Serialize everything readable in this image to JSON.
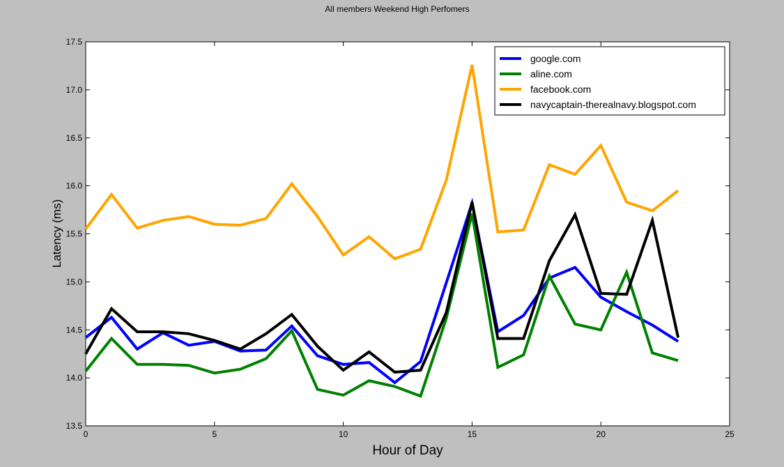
{
  "chart_data": {
    "type": "line",
    "title": "All members Weekend High Perfomers",
    "xlabel": "Hour of Day",
    "ylabel": "Latency (ms)",
    "xlim": [
      0,
      25
    ],
    "ylim": [
      13.5,
      17.5
    ],
    "xticks": [
      0,
      5,
      10,
      15,
      20,
      25
    ],
    "xtick_labels": [
      "0",
      "5",
      "10",
      "15",
      "20",
      "25"
    ],
    "yticks": [
      13.5,
      14.0,
      14.5,
      15.0,
      15.5,
      16.0,
      16.5,
      17.0,
      17.5
    ],
    "ytick_labels": [
      "13.5",
      "14.0",
      "14.5",
      "15.0",
      "15.5",
      "16.0",
      "16.5",
      "17.0",
      "17.5"
    ],
    "grid": false,
    "legend": "top-right",
    "x": [
      0,
      1,
      2,
      3,
      4,
      5,
      6,
      7,
      8,
      9,
      10,
      11,
      12,
      13,
      14,
      15,
      16,
      17,
      18,
      19,
      20,
      21,
      22,
      23
    ],
    "series": [
      {
        "name": "google.com",
        "color": "#0000ff",
        "values": [
          14.42,
          14.63,
          14.3,
          14.47,
          14.34,
          14.38,
          14.28,
          14.29,
          14.54,
          14.23,
          14.14,
          14.16,
          13.95,
          14.17,
          14.99,
          15.82,
          14.48,
          14.65,
          15.04,
          15.15,
          14.84,
          14.69,
          14.55,
          14.38
        ]
      },
      {
        "name": "aline.com",
        "color": "#008000",
        "values": [
          14.07,
          14.41,
          14.14,
          14.14,
          14.13,
          14.05,
          14.09,
          14.2,
          14.49,
          13.88,
          13.82,
          13.97,
          13.91,
          13.81,
          14.62,
          15.71,
          14.11,
          14.24,
          15.06,
          14.56,
          14.5,
          15.1,
          14.26,
          14.18
        ]
      },
      {
        "name": "facebook.com",
        "color": "#ffa500",
        "values": [
          15.55,
          15.91,
          15.56,
          15.64,
          15.68,
          15.6,
          15.59,
          15.66,
          16.02,
          15.68,
          15.28,
          15.47,
          15.24,
          15.34,
          16.06,
          17.26,
          15.52,
          15.54,
          16.22,
          16.12,
          16.42,
          15.83,
          15.74,
          15.95
        ]
      },
      {
        "name": "navycaptain-therealnavy.blogspot.com",
        "color": "#000000",
        "values": [
          14.25,
          14.72,
          14.48,
          14.48,
          14.46,
          14.39,
          14.3,
          14.46,
          14.66,
          14.33,
          14.08,
          14.27,
          14.06,
          14.08,
          14.68,
          15.83,
          14.41,
          14.41,
          15.22,
          15.7,
          14.88,
          14.87,
          15.64,
          14.42
        ]
      }
    ]
  }
}
